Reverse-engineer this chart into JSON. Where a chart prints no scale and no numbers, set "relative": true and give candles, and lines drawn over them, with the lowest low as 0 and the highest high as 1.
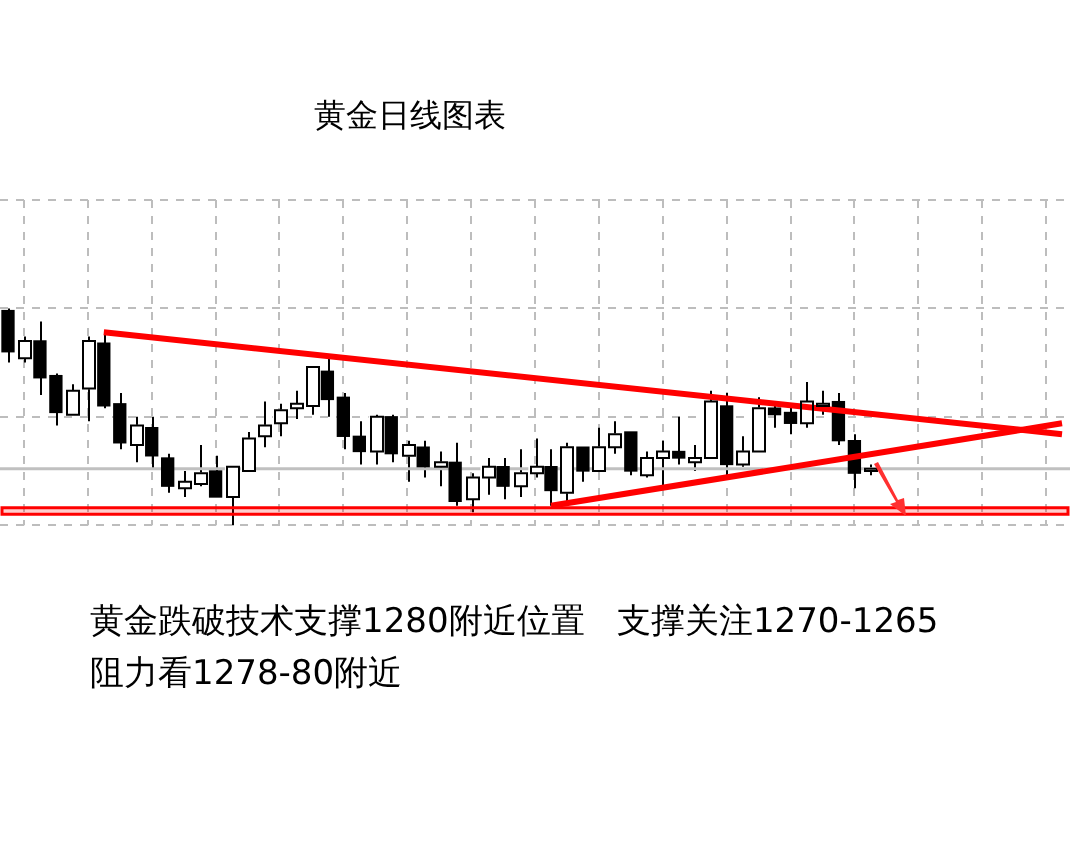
{
  "chart_data": {
    "type": "candlestick",
    "title": "黄金日线图表",
    "relative": true,
    "grid": true,
    "legend": false,
    "categories": [
      null,
      null,
      null,
      null,
      null,
      null,
      null,
      null,
      null,
      null,
      null,
      null,
      null,
      null,
      null,
      null,
      null,
      null,
      null,
      null,
      null,
      null,
      null,
      null,
      null,
      null,
      null,
      null,
      null,
      null,
      null,
      null,
      null,
      null,
      null,
      null,
      null,
      null,
      null,
      null,
      null,
      null,
      null,
      null,
      null,
      null,
      null,
      null,
      null,
      null,
      null,
      null,
      null,
      null,
      null,
      null,
      null,
      null,
      null,
      null,
      null,
      null,
      null,
      null,
      null,
      null,
      null
    ],
    "ohlc": [
      [
        0.99,
        1.0,
        0.75,
        0.8
      ],
      [
        0.77,
        0.87,
        0.75,
        0.85
      ],
      [
        0.85,
        0.94,
        0.6,
        0.68
      ],
      [
        0.69,
        0.7,
        0.46,
        0.52
      ],
      [
        0.51,
        0.65,
        0.51,
        0.62
      ],
      [
        0.63,
        0.87,
        0.48,
        0.85
      ],
      [
        0.84,
        0.89,
        0.54,
        0.55
      ],
      [
        0.56,
        0.61,
        0.35,
        0.38
      ],
      [
        0.37,
        0.5,
        0.29,
        0.46
      ],
      [
        0.45,
        0.5,
        0.26,
        0.32
      ],
      [
        0.31,
        0.33,
        0.15,
        0.18
      ],
      [
        0.17,
        0.25,
        0.13,
        0.2
      ],
      [
        0.19,
        0.37,
        0.18,
        0.24
      ],
      [
        0.25,
        0.32,
        0.13,
        0.13
      ],
      [
        0.13,
        0.27,
        0.0,
        0.27
      ],
      [
        0.25,
        0.43,
        0.25,
        0.4
      ],
      [
        0.41,
        0.57,
        0.36,
        0.46
      ],
      [
        0.47,
        0.56,
        0.41,
        0.53
      ],
      [
        0.54,
        0.62,
        0.49,
        0.56
      ],
      [
        0.55,
        0.73,
        0.51,
        0.73
      ],
      [
        0.71,
        0.77,
        0.5,
        0.58
      ],
      [
        0.59,
        0.61,
        0.35,
        0.41
      ],
      [
        0.41,
        0.48,
        0.28,
        0.34
      ],
      [
        0.34,
        0.51,
        0.28,
        0.5
      ],
      [
        0.5,
        0.51,
        0.29,
        0.33
      ],
      [
        0.32,
        0.39,
        0.2,
        0.37
      ],
      [
        0.36,
        0.39,
        0.22,
        0.27
      ],
      [
        0.27,
        0.34,
        0.18,
        0.29
      ],
      [
        0.29,
        0.38,
        0.09,
        0.11
      ],
      [
        0.12,
        0.24,
        0.06,
        0.22
      ],
      [
        0.22,
        0.31,
        0.14,
        0.27
      ],
      [
        0.27,
        0.31,
        0.12,
        0.18
      ],
      [
        0.18,
        0.35,
        0.13,
        0.24
      ],
      [
        0.24,
        0.4,
        0.22,
        0.27
      ],
      [
        0.27,
        0.35,
        0.09,
        0.16
      ],
      [
        0.15,
        0.38,
        0.09,
        0.36
      ],
      [
        0.36,
        0.36,
        0.2,
        0.25
      ],
      [
        0.25,
        0.45,
        0.25,
        0.36
      ],
      [
        0.36,
        0.48,
        0.33,
        0.42
      ],
      [
        0.43,
        0.43,
        0.23,
        0.25
      ],
      [
        0.23,
        0.34,
        0.22,
        0.31
      ],
      [
        0.31,
        0.39,
        0.18,
        0.34
      ],
      [
        0.34,
        0.5,
        0.28,
        0.31
      ],
      [
        0.29,
        0.37,
        0.25,
        0.31
      ],
      [
        0.31,
        0.62,
        0.31,
        0.57
      ],
      [
        0.55,
        0.61,
        0.23,
        0.28
      ],
      [
        0.28,
        0.41,
        0.27,
        0.34
      ],
      [
        0.34,
        0.59,
        0.34,
        0.54
      ],
      [
        0.54,
        0.56,
        0.45,
        0.51
      ],
      [
        0.52,
        0.55,
        0.42,
        0.47
      ],
      [
        0.47,
        0.66,
        0.45,
        0.57
      ],
      [
        0.55,
        0.62,
        0.51,
        0.56
      ],
      [
        0.57,
        0.61,
        0.37,
        0.39
      ],
      [
        0.39,
        0.42,
        0.17,
        0.24
      ],
      [
        0.25,
        0.28,
        0.23,
        0.26
      ],
      null,
      null,
      null,
      null,
      null,
      null,
      null,
      null,
      null,
      null,
      null,
      null
    ],
    "series": [
      {
        "type": "line",
        "color": "#ff0000",
        "values": [
          null,
          null,
          null,
          null,
          null,
          null,
          0.89,
          null,
          null,
          null,
          null,
          null,
          null,
          null,
          null,
          null,
          null,
          null,
          null,
          null,
          null,
          null,
          null,
          null,
          null,
          null,
          null,
          null,
          null,
          null,
          null,
          null,
          null,
          null,
          null,
          null,
          null,
          null,
          null,
          null,
          null,
          null,
          null,
          null,
          null,
          null,
          null,
          null,
          null,
          null,
          null,
          null,
          null,
          null,
          null,
          null,
          null,
          null,
          null,
          null,
          null,
          null,
          null,
          null,
          null,
          null,
          0.42
        ]
      },
      {
        "type": "line",
        "color": "#ff0000",
        "values": [
          null,
          null,
          null,
          null,
          null,
          null,
          null,
          null,
          null,
          null,
          null,
          null,
          null,
          null,
          null,
          null,
          null,
          null,
          null,
          null,
          null,
          null,
          null,
          null,
          null,
          null,
          null,
          null,
          null,
          null,
          null,
          null,
          null,
          null,
          0.09,
          null,
          null,
          null,
          null,
          null,
          null,
          null,
          null,
          null,
          null,
          null,
          null,
          null,
          null,
          null,
          null,
          null,
          null,
          null,
          null,
          null,
          null,
          null,
          null,
          null,
          null,
          null,
          null,
          null,
          null,
          null,
          0.47
        ]
      }
    ],
    "ref_lines": [
      {
        "axis": "y",
        "value": 0.26,
        "color": "#c0c0c0",
        "line_style": "solid"
      }
    ],
    "bands": [
      {
        "axis": "y",
        "from": 0.05,
        "to": 0.08,
        "color": "#ff0000"
      }
    ],
    "annotations": [
      "黄金跌破技术支撑1280附近位置   支撑关注1270-1265    阻力看1278-80附近"
    ]
  }
}
